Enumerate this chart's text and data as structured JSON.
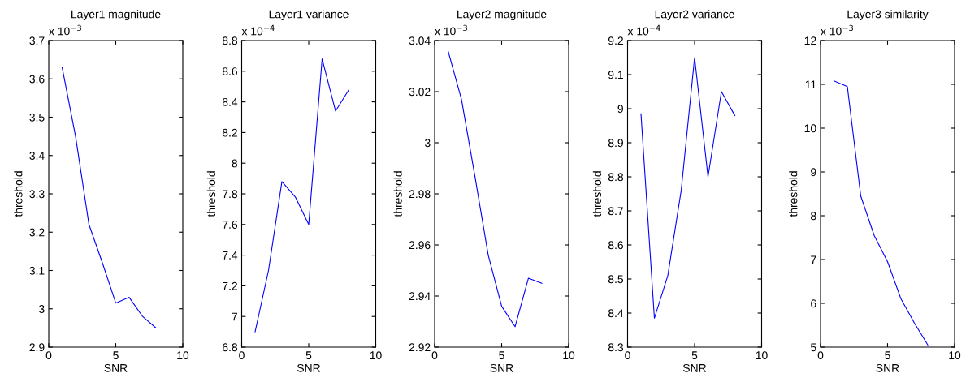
{
  "chart_data": [
    {
      "type": "line",
      "title": "Layer1 magnitude",
      "xlabel": "SNR",
      "ylabel": "threshold",
      "annotations": [
        "x 10$^{−3}$"
      ],
      "x": [
        1,
        2,
        3,
        4,
        5,
        6,
        7,
        8
      ],
      "series": [
        {
          "color": "#0000ff",
          "values": [
            3.63,
            3.45,
            3.22,
            3.12,
            3.015,
            3.03,
            2.98,
            2.95
          ]
        }
      ],
      "xlim": [
        0,
        10
      ],
      "xticks": [
        0,
        5,
        10
      ],
      "ylim": [
        2.9,
        3.7
      ],
      "yticks": [
        2.9,
        3,
        3.1,
        3.2,
        3.3,
        3.4,
        3.5,
        3.6,
        3.7
      ],
      "grid": false
    },
    {
      "type": "line",
      "title": "Layer1 variance",
      "xlabel": "SNR",
      "ylabel": "threshold",
      "annotations": [
        "x 10$^{−4}$"
      ],
      "x": [
        1,
        2,
        3,
        4,
        5,
        6,
        7,
        8
      ],
      "series": [
        {
          "color": "#0000ff",
          "values": [
            6.9,
            7.3,
            7.88,
            7.78,
            7.6,
            8.68,
            8.34,
            8.48
          ]
        }
      ],
      "xlim": [
        0,
        10
      ],
      "xticks": [
        0,
        5,
        10
      ],
      "ylim": [
        6.8,
        8.8
      ],
      "yticks": [
        6.8,
        7,
        7.2,
        7.4,
        7.6,
        7.8,
        8,
        8.2,
        8.4,
        8.6,
        8.8
      ],
      "grid": false
    },
    {
      "type": "line",
      "title": "Layer2 magnitude",
      "xlabel": "SNR",
      "ylabel": "threshold",
      "annotations": [
        "x 10$^{−3}$"
      ],
      "x": [
        1,
        2,
        3,
        4,
        5,
        6,
        7,
        8
      ],
      "series": [
        {
          "color": "#0000ff",
          "values": [
            3.036,
            3.017,
            2.987,
            2.956,
            2.936,
            2.928,
            2.947,
            2.945
          ]
        }
      ],
      "xlim": [
        0,
        10
      ],
      "xticks": [
        0,
        5,
        10
      ],
      "ylim": [
        2.92,
        3.04
      ],
      "yticks": [
        2.92,
        2.94,
        2.96,
        2.98,
        3,
        3.02,
        3.04
      ],
      "grid": false
    },
    {
      "type": "line",
      "title": "Layer2 variance",
      "xlabel": "SNR",
      "ylabel": "threshold",
      "annotations": [
        "x 10$^{−4}$"
      ],
      "x": [
        1,
        2,
        3,
        4,
        5,
        6,
        7,
        8
      ],
      "series": [
        {
          "color": "#0000ff",
          "values": [
            8.985,
            8.385,
            8.51,
            8.76,
            9.15,
            8.8,
            9.05,
            8.98
          ]
        }
      ],
      "xlim": [
        0,
        10
      ],
      "xticks": [
        0,
        5,
        10
      ],
      "ylim": [
        8.3,
        9.2
      ],
      "yticks": [
        8.3,
        8.4,
        8.5,
        8.6,
        8.7,
        8.8,
        8.9,
        9,
        9.1,
        9.2
      ],
      "grid": false
    },
    {
      "type": "line",
      "title": "Layer3 similarity",
      "xlabel": "SNR",
      "ylabel": "threshold",
      "annotations": [
        "x 10$^{−3}$"
      ],
      "x": [
        1,
        2,
        3,
        4,
        5,
        6,
        7,
        8
      ],
      "series": [
        {
          "color": "#0000ff",
          "values": [
            11.08,
            10.95,
            8.45,
            7.55,
            6.95,
            6.1,
            5.55,
            5.05
          ]
        }
      ],
      "xlim": [
        0,
        10
      ],
      "xticks": [
        0,
        5,
        10
      ],
      "ylim": [
        5,
        12
      ],
      "yticks": [
        5,
        6,
        7,
        8,
        9,
        10,
        11,
        12
      ],
      "grid": false
    }
  ]
}
